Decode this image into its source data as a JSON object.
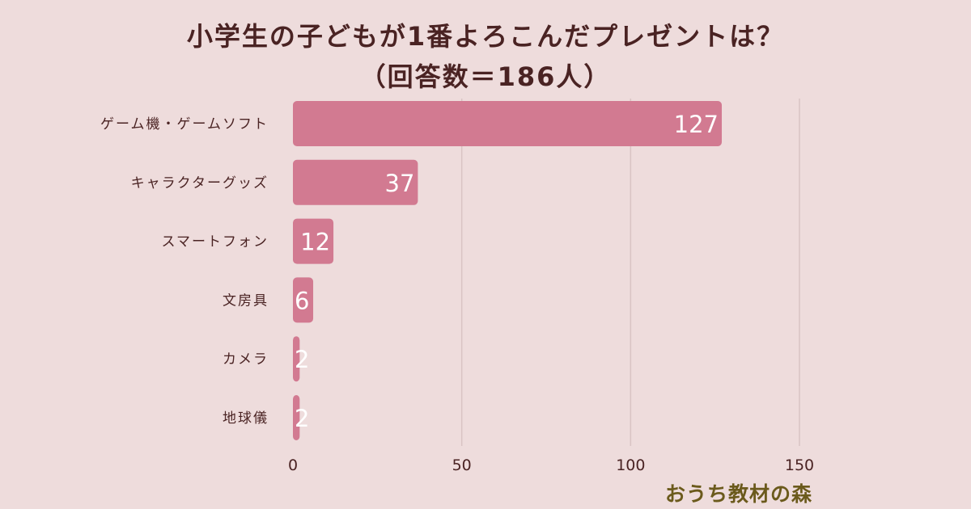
{
  "title_line1": "小学生の子どもが1番よろこんだプレゼントは？",
  "title_line2": "（回答数＝186人）",
  "brand": "おうち教材の森",
  "colors": {
    "background": "#eedcdc",
    "bar": "#d27a91",
    "grid": "#d9c4c4",
    "text": "#4a2323",
    "value_label": "#ffffff",
    "brand": "#6b5a1c"
  },
  "chart_data": {
    "type": "bar",
    "orientation": "horizontal",
    "categories": [
      "ゲーム機・ゲームソフト",
      "キャラクターグッズ",
      "スマートフォン",
      "文房具",
      "カメラ",
      "地球儀"
    ],
    "values": [
      127,
      37,
      12,
      6,
      2,
      2
    ],
    "data_labels": [
      "127",
      "37",
      "12",
      "6",
      "2",
      "2"
    ],
    "title": "小学生の子どもが1番よろこんだプレゼントは？（回答数＝186人）",
    "xlabel": "",
    "ylabel": "",
    "xlim": [
      0,
      150
    ],
    "xticks": [
      0,
      50,
      100,
      150
    ],
    "xtick_labels": [
      "0",
      "50",
      "100",
      "150"
    ],
    "grid": true,
    "legend": "none"
  }
}
